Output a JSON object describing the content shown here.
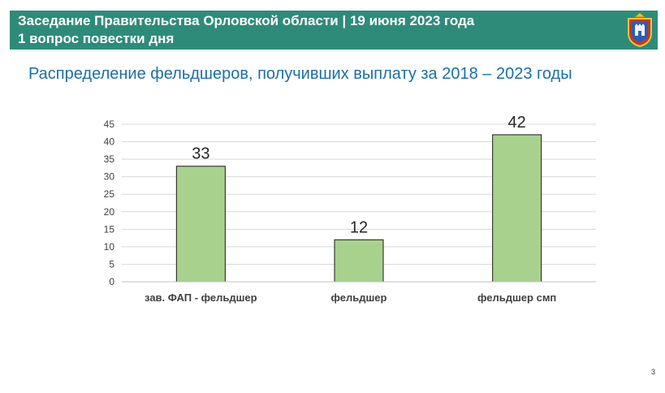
{
  "header": {
    "line1": "Заседание Правительства Орловской области | 19 июня 2023 года",
    "line2": "1 вопрос повестки дня",
    "emblem_icon": "coat-of-arms-icon",
    "background_color": "#2e8b7a"
  },
  "slide": {
    "subtitle": "Распределение фельдшеров, получивших выплату за 2018 – 2023 годы",
    "page_number": "3"
  },
  "chart_data": {
    "type": "bar",
    "categories": [
      "зав. ФАП - фельдшер",
      "фельдшер",
      "фельдшер смп"
    ],
    "values": [
      33,
      12,
      42
    ],
    "data_labels": [
      "33",
      "12",
      "42"
    ],
    "title": "",
    "xlabel": "",
    "ylabel": "",
    "ylim": [
      0,
      45
    ],
    "yticks": [
      "0",
      "5",
      "10",
      "15",
      "20",
      "25",
      "30",
      "35",
      "40",
      "45"
    ],
    "grid": true,
    "legend": "none",
    "bar_color": "#a9d18e",
    "bar_edge_color": "#1a1a1a"
  }
}
